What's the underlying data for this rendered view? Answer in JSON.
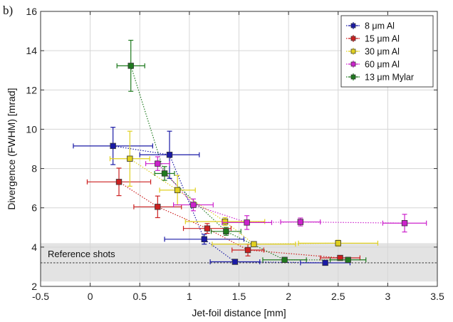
{
  "panel_label": "b)",
  "chart_data": {
    "type": "scatter",
    "title": "",
    "xlabel": "Jet-foil distance [mm]",
    "ylabel": "Divergence (FWHM) [mrad]",
    "xlim": [
      -0.5,
      3.5
    ],
    "ylim": [
      2,
      16
    ],
    "xticks": [
      -0.5,
      0,
      0.5,
      1,
      1.5,
      2,
      2.5,
      3,
      3.5
    ],
    "xtick_labels": [
      "-0.5",
      "0",
      "0.5",
      "1",
      "1.5",
      "2",
      "2.5",
      "3",
      "3.5"
    ],
    "yticks": [
      2,
      4,
      6,
      8,
      10,
      12,
      14,
      16
    ],
    "ytick_labels": [
      "2",
      "4",
      "6",
      "8",
      "10",
      "12",
      "14",
      "16"
    ],
    "grid": true,
    "legend_position": "top-right",
    "reference": {
      "label": "Reference shots",
      "value": 3.2,
      "band": [
        2.25,
        4.2
      ],
      "band_color": "#e3e3e3"
    },
    "series": [
      {
        "name": "8 $\\mu$m Al",
        "label_text": "8 μm Al",
        "color": "#1a1aa6",
        "points": [
          {
            "x": 0.23,
            "y": 9.15,
            "xerr": 0.4,
            "yerr": 0.95
          },
          {
            "x": 0.8,
            "y": 8.7,
            "xerr": 0.3,
            "yerr": 1.2
          },
          {
            "x": 1.15,
            "y": 4.4,
            "xerr": 0.4,
            "yerr": 0.25
          },
          {
            "x": 1.46,
            "y": 3.25,
            "xerr": 0.25,
            "yerr": 0.12
          },
          {
            "x": 2.37,
            "y": 3.2,
            "xerr": 0.25,
            "yerr": 0.1
          }
        ]
      },
      {
        "name": "15 $\\mu$m Al",
        "label_text": "15 μm Al",
        "color": "#cc2020",
        "points": [
          {
            "x": 0.29,
            "y": 7.32,
            "xerr": 0.32,
            "yerr": 0.7
          },
          {
            "x": 0.68,
            "y": 6.05,
            "xerr": 0.24,
            "yerr": 0.55
          },
          {
            "x": 1.18,
            "y": 4.95,
            "xerr": 0.24,
            "yerr": 0.25
          },
          {
            "x": 1.59,
            "y": 3.85,
            "xerr": 0.16,
            "yerr": 0.3
          },
          {
            "x": 2.52,
            "y": 3.45,
            "xerr": 0.2,
            "yerr": 0.1
          }
        ]
      },
      {
        "name": "30 $\\mu$m Al",
        "label_text": "30 μm Al",
        "color": "#e0d020",
        "points": [
          {
            "x": 0.4,
            "y": 8.5,
            "xerr": 0.2,
            "yerr": 1.4
          },
          {
            "x": 0.88,
            "y": 6.9,
            "xerr": 0.18,
            "yerr": 0.75
          },
          {
            "x": 1.36,
            "y": 5.3,
            "xerr": 0.4,
            "yerr": 0.2
          },
          {
            "x": 1.65,
            "y": 4.15,
            "xerr": 0.42,
            "yerr": 0.1
          },
          {
            "x": 2.5,
            "y": 4.2,
            "xerr": 0.4,
            "yerr": 0.15
          }
        ]
      },
      {
        "name": "60 $\\mu$m Al",
        "label_text": "60 μm Al",
        "color": "#cc22cc",
        "points": [
          {
            "x": 0.68,
            "y": 8.25,
            "xerr": 0.12,
            "yerr": 0.35
          },
          {
            "x": 1.04,
            "y": 6.15,
            "xerr": 0.2,
            "yerr": 0.3
          },
          {
            "x": 1.58,
            "y": 5.25,
            "xerr": 0.25,
            "yerr": 0.35
          },
          {
            "x": 2.12,
            "y": 5.28,
            "xerr": 0.2,
            "yerr": 0.2
          },
          {
            "x": 3.17,
            "y": 5.22,
            "xerr": 0.22,
            "yerr": 0.45
          }
        ]
      },
      {
        "name": "13 $\\mu$m Mylar",
        "label_text": "13 μm Mylar",
        "color": "#1f7a1f",
        "points": [
          {
            "x": 0.41,
            "y": 13.23,
            "xerr": 0.14,
            "yerr": 1.3
          },
          {
            "x": 0.75,
            "y": 7.75,
            "xerr": 0.1,
            "yerr": 0.35
          },
          {
            "x": 1.37,
            "y": 4.8,
            "xerr": 0.15,
            "yerr": 0.2
          },
          {
            "x": 1.96,
            "y": 3.35,
            "xerr": 0.22,
            "yerr": 0.12
          },
          {
            "x": 2.6,
            "y": 3.35,
            "xerr": 0.18,
            "yerr": 0.12
          }
        ]
      }
    ]
  }
}
